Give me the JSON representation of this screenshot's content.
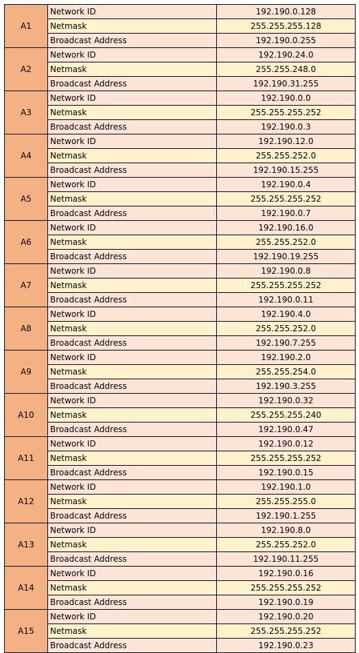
{
  "colors": {
    "group_label_bg": "#f4b183",
    "row_alt_a": "#fce4d6",
    "row_alt_b": "#fff2cc",
    "border": "#000000"
  },
  "groups": [
    {
      "label": "A1",
      "rows": [
        {
          "name": "Network ID",
          "value": "192.190.0.128"
        },
        {
          "name": "Netmask",
          "value": "255.255.255.128"
        },
        {
          "name": "Broadcast Address",
          "value": "192.190.0.255"
        }
      ]
    },
    {
      "label": "A2",
      "rows": [
        {
          "name": "Network ID",
          "value": "192.190.24.0"
        },
        {
          "name": "Netmask",
          "value": "255.255.248.0"
        },
        {
          "name": "Broadcast Address",
          "value": "192.190.31.255"
        }
      ]
    },
    {
      "label": "A3",
      "rows": [
        {
          "name": "Network ID",
          "value": "192.190.0.0"
        },
        {
          "name": "Netmask",
          "value": "255.255.255.252"
        },
        {
          "name": "Broadcast Address",
          "value": "192.190.0.3"
        }
      ]
    },
    {
      "label": "A4",
      "rows": [
        {
          "name": "Network ID",
          "value": "192.190.12.0"
        },
        {
          "name": "Netmask",
          "value": "255.255.252.0"
        },
        {
          "name": "Broadcast Address",
          "value": "192.190.15.255"
        }
      ]
    },
    {
      "label": "A5",
      "rows": [
        {
          "name": "Network ID",
          "value": "192.190.0.4"
        },
        {
          "name": "Netmask",
          "value": "255.255.255.252"
        },
        {
          "name": "Broadcast Address",
          "value": "192.190.0.7"
        }
      ]
    },
    {
      "label": "A6",
      "rows": [
        {
          "name": "Network ID",
          "value": "192.190.16.0"
        },
        {
          "name": "Netmask",
          "value": "255.255.252.0"
        },
        {
          "name": "Broadcast Address",
          "value": "192.190.19.255"
        }
      ]
    },
    {
      "label": "A7",
      "rows": [
        {
          "name": "Network ID",
          "value": "192.190.0.8"
        },
        {
          "name": "Netmask",
          "value": "255.255.255.252"
        },
        {
          "name": "Broadcast Address",
          "value": "192.190.0.11"
        }
      ]
    },
    {
      "label": "A8",
      "rows": [
        {
          "name": "Network ID",
          "value": "192.190.4.0"
        },
        {
          "name": "Netmask",
          "value": "255.255.252.0"
        },
        {
          "name": "Broadcast Address",
          "value": "192.190.7.255"
        }
      ]
    },
    {
      "label": "A9",
      "rows": [
        {
          "name": "Network ID",
          "value": "192.190.2.0"
        },
        {
          "name": "Netmask",
          "value": "255.255.254.0"
        },
        {
          "name": "Broadcast Address",
          "value": "192.190.3.255"
        }
      ]
    },
    {
      "label": "A10",
      "rows": [
        {
          "name": "Network ID",
          "value": "192.190.0.32"
        },
        {
          "name": "Netmask",
          "value": "255.255.255.240"
        },
        {
          "name": "Broadcast Address",
          "value": "192.190.0.47"
        }
      ]
    },
    {
      "label": "A11",
      "rows": [
        {
          "name": "Network ID",
          "value": "192.190.0.12"
        },
        {
          "name": "Netmask",
          "value": "255.255.255.252"
        },
        {
          "name": "Broadcast Address",
          "value": "192.190.0.15"
        }
      ]
    },
    {
      "label": "A12",
      "rows": [
        {
          "name": "Network ID",
          "value": "192.190.1.0"
        },
        {
          "name": "Netmask",
          "value": "255.255.255.0"
        },
        {
          "name": "Broadcast Address",
          "value": "192.190.1.255"
        }
      ]
    },
    {
      "label": "A13",
      "rows": [
        {
          "name": "Network ID",
          "value": "192.190.8.0"
        },
        {
          "name": "Netmask",
          "value": "255.255.252.0"
        },
        {
          "name": "Broadcast Address",
          "value": "192.190.11.255"
        }
      ]
    },
    {
      "label": "A14",
      "rows": [
        {
          "name": "Network ID",
          "value": "192.190.0.16"
        },
        {
          "name": "Netmask",
          "value": "255.255.255.252"
        },
        {
          "name": "Broadcast Address",
          "value": "192.190.0.19"
        }
      ]
    },
    {
      "label": "A15",
      "rows": [
        {
          "name": "Network ID",
          "value": "192.190.0.20"
        },
        {
          "name": "Netmask",
          "value": "255.255.255.252"
        },
        {
          "name": "Broadcast Address",
          "value": "192.190.0.23"
        }
      ]
    }
  ]
}
